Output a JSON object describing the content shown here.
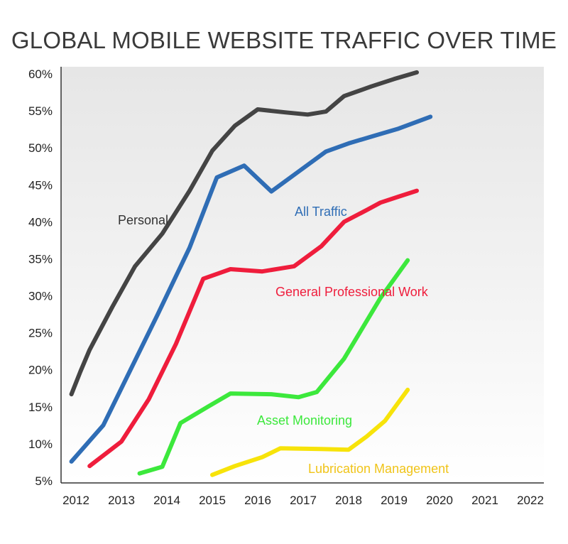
{
  "chart_data": {
    "type": "line",
    "title": "GLOBAL MOBILE WEBSITE TRAFFIC OVER TIME",
    "xlabel": "",
    "ylabel": "",
    "x_ticks": [
      "2012",
      "2013",
      "2014",
      "2015",
      "2016",
      "2017",
      "2018",
      "2019",
      "2020",
      "2021",
      "2022"
    ],
    "y_ticks": [
      "60%",
      "55%",
      "50%",
      "45%",
      "40%",
      "35%",
      "30%",
      "25%",
      "20%",
      "15%",
      "10%",
      "5%"
    ],
    "ylim": [
      5,
      60
    ],
    "xlim": [
      2012,
      2022
    ],
    "grid": false,
    "series": [
      {
        "name": "Personal",
        "color": "#444444",
        "points": [
          [
            2011.9,
            16.7
          ],
          [
            2012.1,
            19.8
          ],
          [
            2012.3,
            22.7
          ],
          [
            2012.8,
            28.5
          ],
          [
            2013.3,
            34.0
          ],
          [
            2013.9,
            38.4
          ],
          [
            2014.5,
            44.2
          ],
          [
            2015.0,
            49.6
          ],
          [
            2015.5,
            53.0
          ],
          [
            2016.0,
            55.2
          ],
          [
            2016.6,
            54.8
          ],
          [
            2017.1,
            54.5
          ],
          [
            2017.5,
            54.9
          ],
          [
            2017.9,
            57.0
          ],
          [
            2018.5,
            58.3
          ],
          [
            2019.0,
            59.3
          ],
          [
            2019.5,
            60.2
          ]
        ]
      },
      {
        "name": "All Traffic",
        "color": "#2f6db5",
        "points": [
          [
            2011.9,
            7.6
          ],
          [
            2012.6,
            12.5
          ],
          [
            2013.2,
            20.0
          ],
          [
            2013.8,
            27.5
          ],
          [
            2014.5,
            36.5
          ],
          [
            2015.1,
            46.0
          ],
          [
            2015.7,
            47.6
          ],
          [
            2016.3,
            44.1
          ],
          [
            2016.9,
            46.8
          ],
          [
            2017.5,
            49.5
          ],
          [
            2018.0,
            50.6
          ],
          [
            2018.6,
            51.7
          ],
          [
            2019.1,
            52.6
          ],
          [
            2019.8,
            54.2
          ]
        ]
      },
      {
        "name": "General Professional Work",
        "color": "#ef1d3c",
        "points": [
          [
            2012.3,
            7.0
          ],
          [
            2013.0,
            10.3
          ],
          [
            2013.6,
            16.0
          ],
          [
            2014.2,
            23.5
          ],
          [
            2014.8,
            32.3
          ],
          [
            2015.4,
            33.6
          ],
          [
            2016.1,
            33.3
          ],
          [
            2016.8,
            34.0
          ],
          [
            2017.4,
            36.7
          ],
          [
            2017.9,
            40.0
          ],
          [
            2018.4,
            41.6
          ],
          [
            2018.7,
            42.6
          ],
          [
            2019.1,
            43.4
          ],
          [
            2019.5,
            44.2
          ]
        ]
      },
      {
        "name": "Asset Monitoring",
        "color": "#3ce83c",
        "points": [
          [
            2013.4,
            6.0
          ],
          [
            2013.9,
            6.9
          ],
          [
            2014.3,
            12.8
          ],
          [
            2014.9,
            15.0
          ],
          [
            2015.4,
            16.8
          ],
          [
            2016.3,
            16.7
          ],
          [
            2016.9,
            16.3
          ],
          [
            2017.3,
            17.0
          ],
          [
            2017.9,
            21.5
          ],
          [
            2018.7,
            29.7
          ],
          [
            2019.3,
            34.8
          ]
        ]
      },
      {
        "name": "Lubrication Management",
        "color": "#f7e30a",
        "points": [
          [
            2015.0,
            5.8
          ],
          [
            2015.5,
            7.0
          ],
          [
            2016.1,
            8.2
          ],
          [
            2016.5,
            9.4
          ],
          [
            2017.4,
            9.3
          ],
          [
            2018.0,
            9.2
          ],
          [
            2018.4,
            11.0
          ],
          [
            2018.8,
            13.1
          ],
          [
            2019.3,
            17.3
          ]
        ]
      }
    ]
  }
}
